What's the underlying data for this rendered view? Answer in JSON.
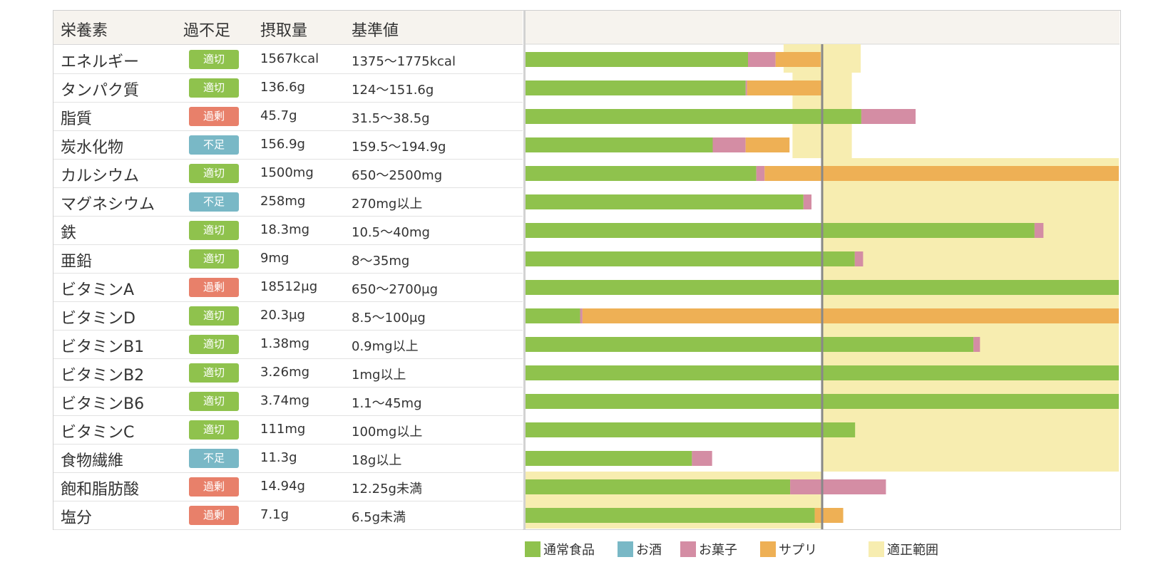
{
  "table": {
    "headers": {
      "nutrient": "栄養素",
      "status": "過不足",
      "intake": "摂取量",
      "reference": "基準値"
    }
  },
  "colors": {
    "regular": "#8fc24d",
    "alcohol": "#79b8c6",
    "snacks": "#d48da4",
    "supplement": "#eeb055",
    "range": "#f7edb0",
    "status_ok": "#8fc24d",
    "status_over": "#e8806a",
    "status_short": "#79b8c6",
    "reference_line": "#888888"
  },
  "chart_data": {
    "type": "bar",
    "orientation": "horizontal",
    "stacked": true,
    "unit": "% of reference (100 = center line)",
    "x_range": [
      0,
      200
    ],
    "categories": [
      "エネルギー",
      "タンパク質",
      "脂質",
      "炭水化物",
      "カルシウム",
      "マグネシウム",
      "鉄",
      "亜鉛",
      "ビタミンA",
      "ビタミンD",
      "ビタミンB1",
      "ビタミンB2",
      "ビタミンB6",
      "ビタミンC",
      "食物繊維",
      "飽和脂肪酸",
      "塩分"
    ],
    "status": [
      "適切",
      "適切",
      "過剰",
      "不足",
      "適切",
      "不足",
      "適切",
      "適切",
      "過剰",
      "適切",
      "適切",
      "適切",
      "適切",
      "適切",
      "不足",
      "過剰",
      "過剰"
    ],
    "status_kind": [
      "ok",
      "ok",
      "over",
      "short",
      "ok",
      "short",
      "ok",
      "ok",
      "over",
      "ok",
      "ok",
      "ok",
      "ok",
      "ok",
      "short",
      "over",
      "over"
    ],
    "intake": [
      "1567kcal",
      "136.6g",
      "45.7g",
      "156.9g",
      "1500mg",
      "258mg",
      "18.3mg",
      "9mg",
      "18512μg",
      "20.3μg",
      "1.38mg",
      "3.26mg",
      "3.74mg",
      "111mg",
      "11.3g",
      "14.94g",
      "7.1g"
    ],
    "reference": [
      "1375〜1775kcal",
      "124〜151.6g",
      "31.5〜38.5g",
      "159.5〜194.9g",
      "650〜2500mg",
      "270mg以上",
      "10.5〜40mg",
      "8〜35mg",
      "650〜2700μg",
      "8.5〜100μg",
      "0.9mg以上",
      "1mg以上",
      "1.1〜45mg",
      "100mg以上",
      "18g以上",
      "12.25g未満",
      "6.5g未満"
    ],
    "series": [
      {
        "name": "通常食品",
        "key": "regular",
        "values": [
          75,
          74.2,
          113.2,
          63.1,
          77.8,
          93.7,
          171.6,
          111,
          200,
          18.4,
          151,
          200,
          200,
          111.1,
          56.1,
          89.2,
          97.5
        ]
      },
      {
        "name": "お酒",
        "key": "alcohol",
        "values": [
          0,
          0,
          0,
          0,
          0,
          0,
          0,
          0,
          0,
          0,
          0,
          0,
          0,
          0,
          0,
          0,
          0
        ]
      },
      {
        "name": "お菓子",
        "key": "snacks",
        "values": [
          9.3,
          0.5,
          18.3,
          11.1,
          2.8,
          2.7,
          3,
          2.8,
          0,
          0.8,
          2.2,
          0,
          0,
          0,
          6.8,
          32.3,
          0
        ]
      },
      {
        "name": "サプリ",
        "key": "supplement",
        "values": [
          15.2,
          25.3,
          0,
          14.8,
          119.4,
          0,
          0,
          0,
          0,
          180.8,
          0,
          0,
          0,
          0,
          0,
          0,
          9.6
        ]
      }
    ],
    "range": {
      "name": "適正範囲",
      "values": [
        [
          87,
          113
        ],
        [
          90,
          110
        ],
        [
          90,
          110
        ],
        [
          90,
          110
        ],
        [
          100,
          200
        ],
        [
          100,
          200
        ],
        [
          100,
          200
        ],
        [
          100,
          200
        ],
        [
          100,
          200
        ],
        [
          100,
          200
        ],
        [
          100,
          200
        ],
        [
          100,
          200
        ],
        [
          100,
          200
        ],
        [
          100,
          200
        ],
        [
          100,
          200
        ],
        [
          0,
          100
        ],
        [
          0,
          100
        ]
      ]
    },
    "reference_line": 100
  },
  "legend": [
    {
      "label": "通常食品",
      "key": "regular"
    },
    {
      "label": "お酒",
      "key": "alcohol"
    },
    {
      "label": "お菓子",
      "key": "snacks"
    },
    {
      "label": "サプリ",
      "key": "supplement"
    },
    {
      "label": "適正範囲",
      "key": "range"
    }
  ]
}
